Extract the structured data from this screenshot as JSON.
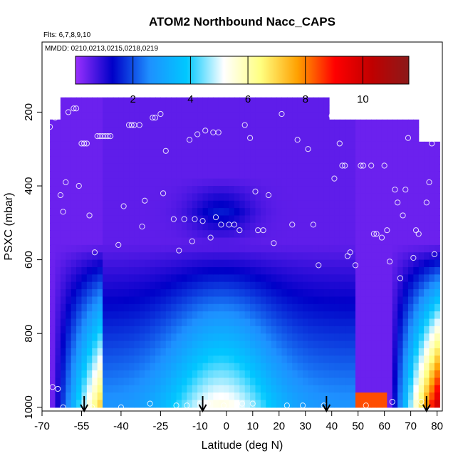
{
  "chart_data": {
    "type": "heatmap",
    "title": "ATOM2 Northbound Nacc_CAPS",
    "flights_note": "Flts: 6,7,8,9,10",
    "dates_note": "MMDD: 0210,0213,0215,0218,0219",
    "xlabel": "Latitude (deg N)",
    "ylabel": "PSXC (mbar)",
    "xlim": [
      -70,
      82
    ],
    "ylim": [
      1010,
      10
    ],
    "y_reversed": true,
    "x_ticks": [
      -70,
      -55,
      -40,
      -25,
      -10,
      0,
      10,
      20,
      30,
      40,
      50,
      60,
      70,
      80
    ],
    "y_ticks": [
      200,
      400,
      600,
      800,
      1000
    ],
    "colorbar": {
      "min": 0,
      "max": 11.6,
      "ticks": [
        2,
        4,
        6,
        8,
        10
      ],
      "colors": [
        "#9b30ff",
        "#0000c8",
        "#1e90ff",
        "#00c8ff",
        "#ffffff",
        "#ffff80",
        "#ffa000",
        "#ff0000",
        "#c00000",
        "#8b1a1a"
      ]
    },
    "profile_arrows_lat": [
      -54,
      -9,
      38,
      76
    ],
    "sample_points": [
      [
        -67,
        240
      ],
      [
        -66,
        945
      ],
      [
        -65,
        215
      ],
      [
        -64,
        950
      ],
      [
        -63,
        425
      ],
      [
        -62,
        470
      ],
      [
        -62,
        1000
      ],
      [
        -61,
        390
      ],
      [
        -60,
        200
      ],
      [
        -58,
        190
      ],
      [
        -57,
        190
      ],
      [
        -56,
        400
      ],
      [
        -55,
        285
      ],
      [
        -54,
        285
      ],
      [
        -53,
        285
      ],
      [
        -52,
        480
      ],
      [
        -51,
        1000
      ],
      [
        -50,
        580
      ],
      [
        -49,
        265
      ],
      [
        -48,
        265
      ],
      [
        -47,
        265
      ],
      [
        -46,
        265
      ],
      [
        -45,
        265
      ],
      [
        -44,
        265
      ],
      [
        -41,
        560
      ],
      [
        -40,
        1000
      ],
      [
        -39,
        455
      ],
      [
        -37,
        235
      ],
      [
        -36,
        235
      ],
      [
        -35,
        235
      ],
      [
        -33,
        235
      ],
      [
        -32,
        510
      ],
      [
        -31,
        440
      ],
      [
        -29,
        990
      ],
      [
        -28,
        215
      ],
      [
        -27,
        215
      ],
      [
        -25,
        205
      ],
      [
        -24,
        420
      ],
      [
        -23,
        305
      ],
      [
        -20,
        490
      ],
      [
        -19,
        995
      ],
      [
        -18,
        575
      ],
      [
        -16,
        490
      ],
      [
        -15,
        995
      ],
      [
        -14,
        275
      ],
      [
        -13,
        550
      ],
      [
        -12,
        490
      ],
      [
        -11,
        260
      ],
      [
        -10,
        990
      ],
      [
        -9,
        495
      ],
      [
        -8,
        250
      ],
      [
        -7,
        990
      ],
      [
        -6,
        540
      ],
      [
        -5,
        255
      ],
      [
        -4,
        485
      ],
      [
        -3,
        255
      ],
      [
        -2,
        505
      ],
      [
        -1,
        995
      ],
      [
        1,
        505
      ],
      [
        3,
        505
      ],
      [
        5,
        520
      ],
      [
        6,
        990
      ],
      [
        7,
        235
      ],
      [
        9,
        270
      ],
      [
        10,
        990
      ],
      [
        11,
        415
      ],
      [
        12,
        520
      ],
      [
        14,
        520
      ],
      [
        16,
        425
      ],
      [
        18,
        555
      ],
      [
        21,
        205
      ],
      [
        23,
        995
      ],
      [
        25,
        505
      ],
      [
        27,
        275
      ],
      [
        29,
        995
      ],
      [
        31,
        300
      ],
      [
        33,
        505
      ],
      [
        35,
        615
      ],
      [
        37,
        995
      ],
      [
        40,
        210
      ],
      [
        41,
        380
      ],
      [
        43,
        285
      ],
      [
        44,
        345
      ],
      [
        45,
        345
      ],
      [
        46,
        590
      ],
      [
        47,
        580
      ],
      [
        49,
        615
      ],
      [
        51,
        345
      ],
      [
        52,
        345
      ],
      [
        53,
        995
      ],
      [
        55,
        345
      ],
      [
        56,
        530
      ],
      [
        57,
        530
      ],
      [
        59,
        540
      ],
      [
        60,
        345
      ],
      [
        61,
        520
      ],
      [
        62,
        605
      ],
      [
        63,
        985
      ],
      [
        64,
        410
      ],
      [
        65,
        445
      ],
      [
        66,
        650
      ],
      [
        67,
        480
      ],
      [
        68,
        410
      ],
      [
        69,
        270
      ],
      [
        71,
        595
      ],
      [
        72,
        520
      ],
      [
        73,
        530
      ],
      [
        74,
        985
      ],
      [
        75,
        260
      ],
      [
        76,
        445
      ],
      [
        77,
        390
      ],
      [
        78,
        285
      ],
      [
        79,
        585
      ]
    ]
  }
}
